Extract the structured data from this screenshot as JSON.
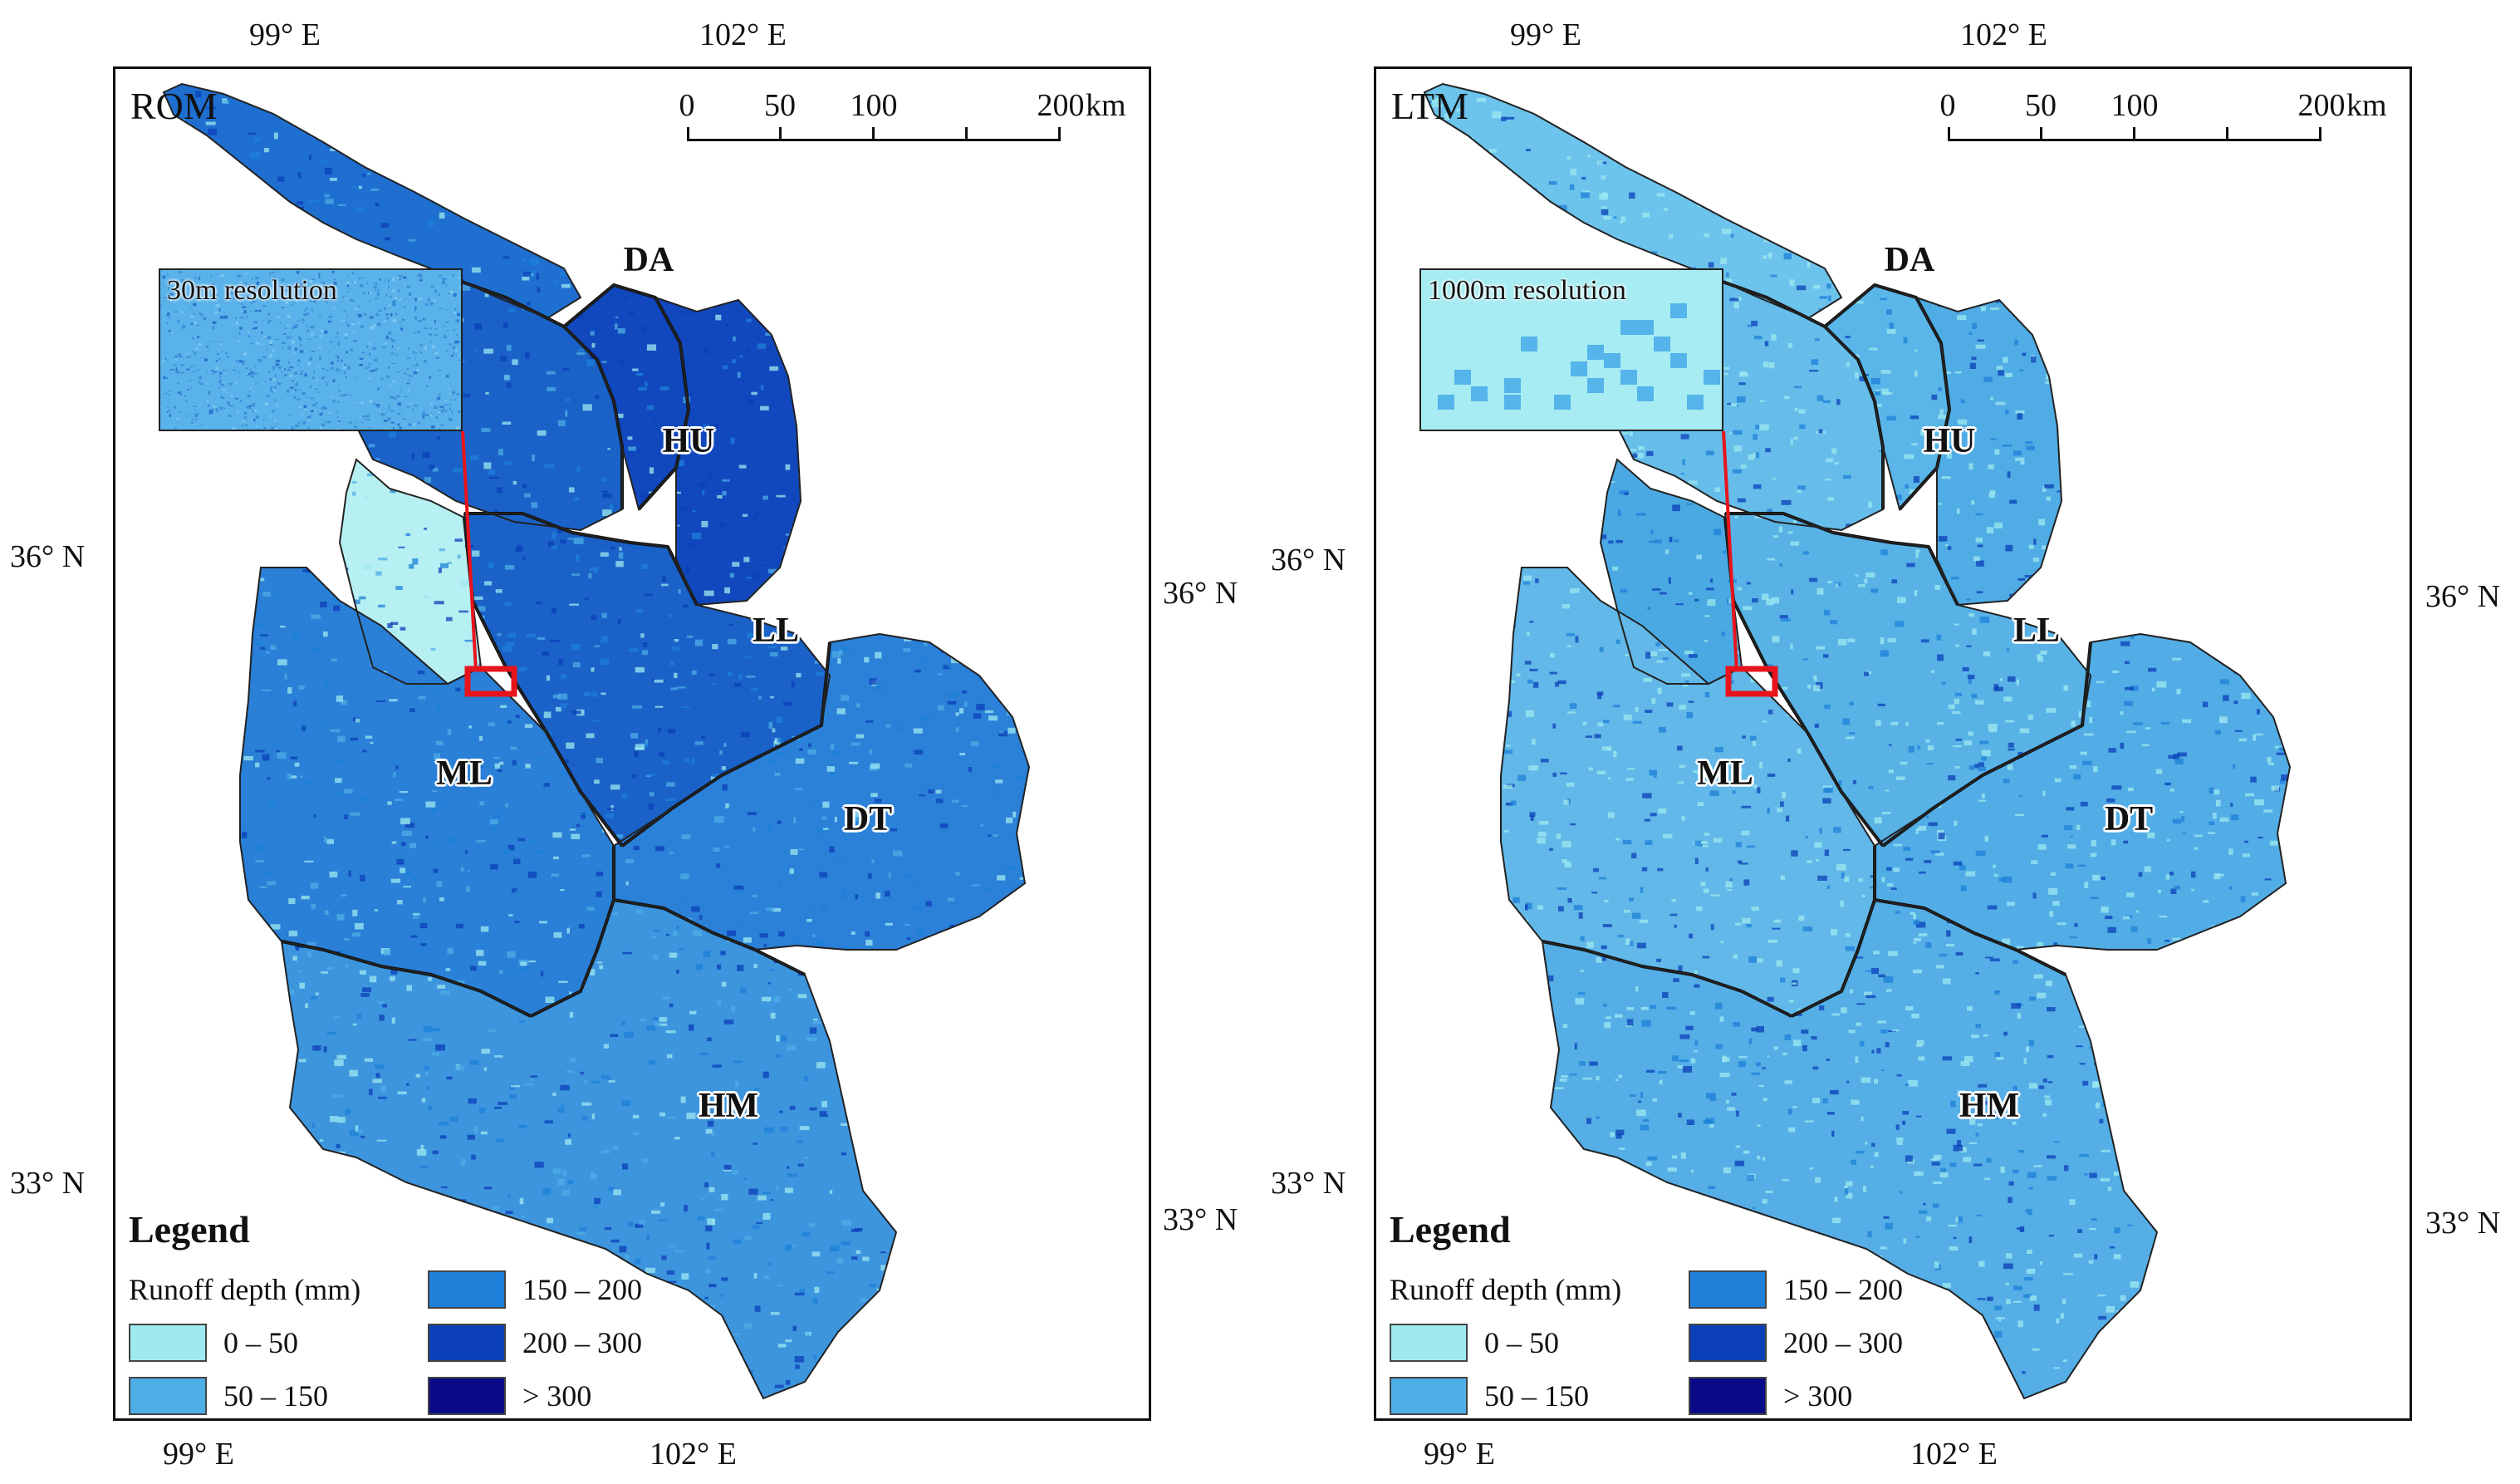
{
  "figure": {
    "legend": {
      "title": "Legend",
      "subtitle": "Runoff depth (mm)",
      "classes": [
        {
          "label": "0 – 50",
          "color": "#9eeaf0"
        },
        {
          "label": "50 – 150",
          "color": "#4eaee6"
        },
        {
          "label": "150 – 200",
          "color": "#1e80d8"
        },
        {
          "label": "200 – 300",
          "color": "#0b3fb8"
        },
        {
          "label": "> 300",
          "color": "#0a0a88"
        }
      ]
    },
    "scale_bar": {
      "ticks": [
        "0",
        "50",
        "100",
        "200"
      ],
      "unit": "km"
    },
    "regions": [
      "DA",
      "HU",
      "LL",
      "ML",
      "DT",
      "HM"
    ],
    "panels": [
      {
        "id": "ROM",
        "title": "ROM",
        "inset_label": "30m resolution",
        "top_lon": [
          "99° E",
          "102° E"
        ],
        "bottom_lon": [
          "99° E",
          "102° E"
        ],
        "left_lat": [
          "36° N",
          "33° N"
        ],
        "right_lat": [
          "36° N",
          "33° N"
        ],
        "region_colors": {
          "DA": "#1e6fd0",
          "HU": "#1a62c8",
          "LL": "#1a62c8",
          "ML": "#2a7fd6",
          "DT": "#2b80d8",
          "HM": "#3d95de",
          "NE": "#1148bd",
          "E": "#1148bd",
          "W": "#b7f0f2"
        }
      },
      {
        "id": "LTM",
        "title": "LTM",
        "inset_label": "1000m resolution",
        "top_lon": [
          "99° E",
          "102° E"
        ],
        "bottom_lon": [
          "99° E",
          "102° E"
        ],
        "left_lat": [
          "36° N",
          "33° N"
        ],
        "right_lat": [
          "36° N",
          "33° N"
        ],
        "region_colors": {
          "DA": "#6cc3ec",
          "HU": "#66bdea",
          "LL": "#58b2e6",
          "ML": "#62b8e8",
          "DT": "#52ade6",
          "HM": "#55aee6",
          "NE": "#5ab5e8",
          "E": "#50ace4",
          "W": "#4aa9e2"
        }
      }
    ]
  }
}
